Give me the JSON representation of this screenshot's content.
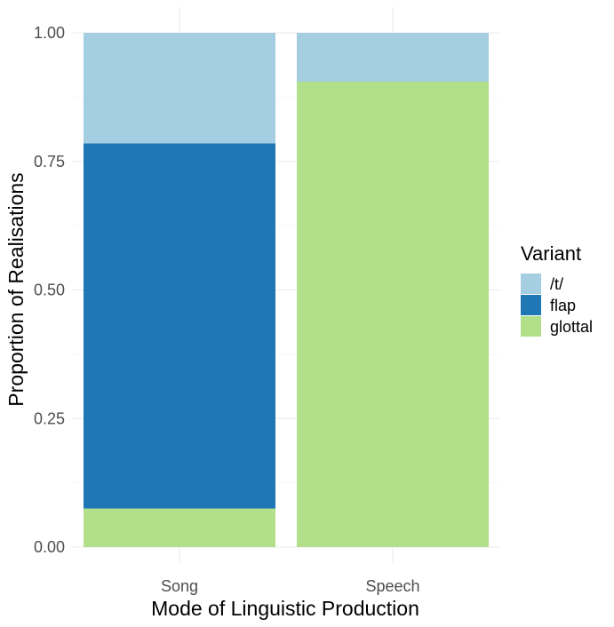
{
  "chart_data": {
    "type": "bar",
    "stacked": true,
    "title": "",
    "xlabel": "Mode of Linguistic Production",
    "ylabel": "Proportion of Realisations",
    "categories": [
      "Song",
      "Speech"
    ],
    "ylim": [
      0,
      1
    ],
    "yticks": [
      "0.00",
      "0.25",
      "0.50",
      "0.75",
      "1.00"
    ],
    "grid": true,
    "legend": {
      "title": "Variant",
      "placement": "right"
    },
    "series": [
      {
        "name": "glottal",
        "color": "#b2df8a",
        "values": [
          0.075,
          0.905
        ]
      },
      {
        "name": "flap",
        "color": "#1f78b4",
        "values": [
          0.71,
          0.0
        ]
      },
      {
        "name": "/t/",
        "color": "#a6cee3",
        "values": [
          0.215,
          0.095
        ]
      }
    ],
    "legend_order": [
      "/t/",
      "flap",
      "glottal"
    ]
  }
}
